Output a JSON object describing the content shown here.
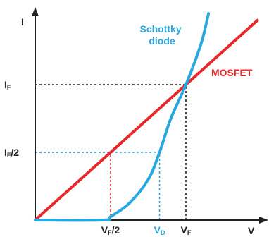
{
  "chart_data": {
    "type": "line",
    "axes": {
      "xlabel": "V",
      "ylabel": "I",
      "grid": false
    },
    "ticks": {
      "x": [
        {
          "main": "V",
          "sub": "F",
          "suffix": "/2",
          "value": 1.0,
          "color": "#222222"
        },
        {
          "main": "V",
          "sub": "D",
          "suffix": "",
          "value": 1.65,
          "color": "#29a8e0"
        },
        {
          "main": "V",
          "sub": "F",
          "suffix": "",
          "value": 2.0,
          "color": "#222222"
        }
      ],
      "y": [
        {
          "main": "I",
          "sub": "F",
          "suffix": "",
          "value": 2.0
        },
        {
          "main": "I",
          "sub": "F",
          "suffix": "/2",
          "value": 1.0
        }
      ]
    },
    "series": [
      {
        "name": "MOSFET",
        "color": "#e8282b",
        "points": [
          [
            0,
            0
          ],
          [
            2.95,
            2.95
          ]
        ]
      },
      {
        "name": "Schottky diode",
        "name_lines": [
          "Schottky",
          "diode"
        ],
        "color": "#29a8e0",
        "points": [
          [
            0,
            0
          ],
          [
            0.9,
            0
          ],
          [
            1.0,
            0.05
          ],
          [
            1.25,
            0.25
          ],
          [
            1.5,
            0.6
          ],
          [
            1.65,
            1.0
          ],
          [
            1.8,
            1.5
          ],
          [
            2.0,
            2.0
          ],
          [
            2.2,
            2.6
          ],
          [
            2.3,
            3.05
          ]
        ]
      }
    ],
    "guides": [
      {
        "x": 1.0,
        "y": 1.0,
        "color": "#e8282b"
      },
      {
        "x": 1.65,
        "y": 1.0,
        "color": "#29a8e0"
      },
      {
        "x": 2.0,
        "y": 2.0,
        "color": "#222222"
      }
    ],
    "xlim": [
      0,
      3.0
    ],
    "ylim": [
      0,
      3.2
    ]
  }
}
